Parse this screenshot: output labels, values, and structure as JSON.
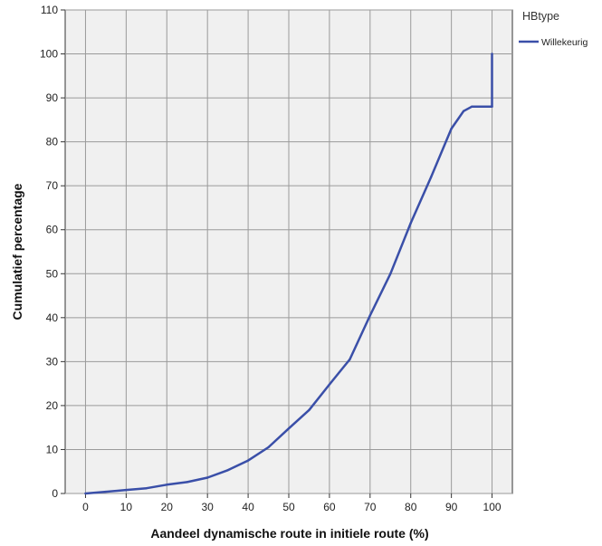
{
  "chart_data": {
    "type": "line",
    "xlabel": "Aandeel dynamische route in initiele route  (%)",
    "ylabel": "Cumulatief percentage",
    "xlim": [
      -5,
      105
    ],
    "ylim": [
      0,
      110
    ],
    "x_ticks": [
      "0",
      "10",
      "20",
      "30",
      "40",
      "50",
      "60",
      "70",
      "80",
      "90",
      "100"
    ],
    "y_ticks": [
      "0",
      "10",
      "20",
      "30",
      "40",
      "50",
      "60",
      "70",
      "80",
      "90",
      "100",
      "110"
    ],
    "grid": true,
    "legend": {
      "title": "HBtype",
      "position": "top-right"
    },
    "series": [
      {
        "name": "Willekeurig",
        "color": "#3a4fa8",
        "x": [
          0,
          5,
          10,
          15,
          20,
          25,
          30,
          35,
          40,
          45,
          50,
          55,
          60,
          65,
          70,
          75,
          80,
          85,
          90,
          93,
          95,
          100,
          100
        ],
        "y": [
          0,
          0.4,
          0.8,
          1.2,
          2.0,
          2.6,
          3.6,
          5.3,
          7.5,
          10.5,
          14.8,
          19.0,
          24.8,
          30.5,
          40.5,
          50.0,
          61.5,
          72.0,
          83.0,
          87.0,
          88.0,
          88.0,
          100.0
        ]
      }
    ]
  }
}
